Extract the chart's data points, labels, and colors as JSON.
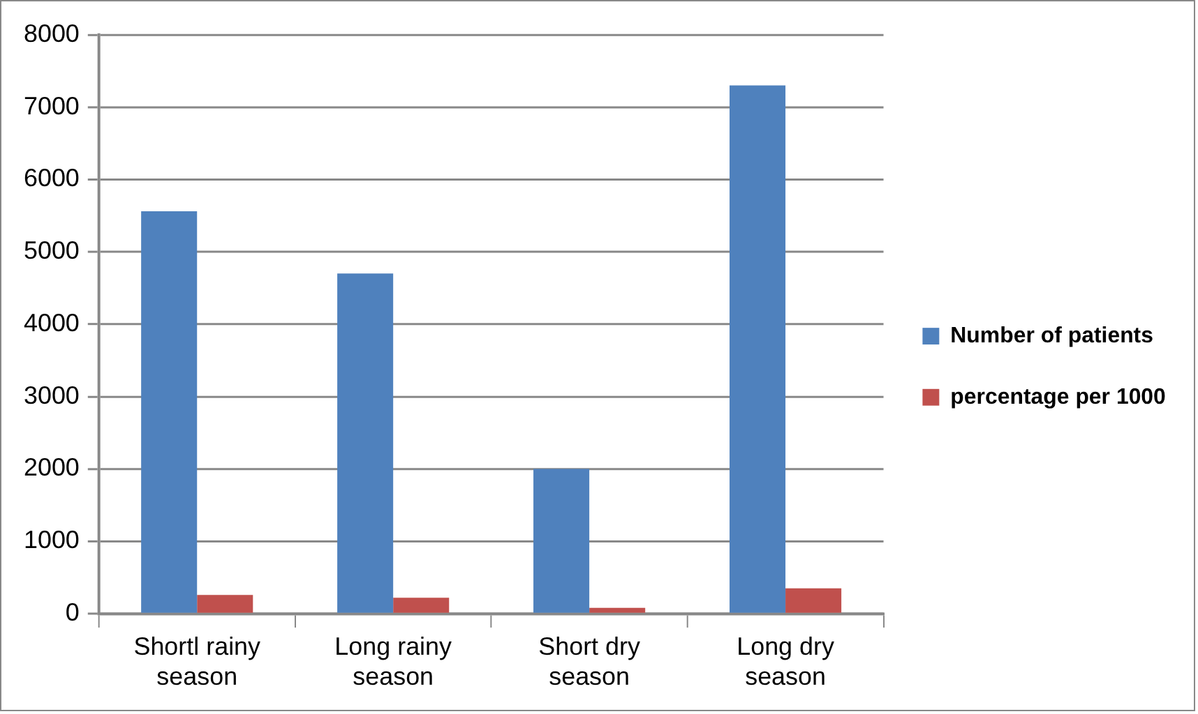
{
  "chart_data": {
    "type": "bar",
    "categories": [
      "Shortl rainy season",
      "Long rainy season",
      "Short dry season",
      "Long dry season"
    ],
    "series": [
      {
        "name": "Number of patients",
        "color": "#4f81bd",
        "values": [
          5560,
          4700,
          2000,
          7300
        ]
      },
      {
        "name": "percentage per 1000",
        "color": "#c0504d",
        "values": [
          260,
          220,
          80,
          350
        ]
      }
    ],
    "ylim": [
      0,
      8000
    ],
    "yticks": [
      0,
      1000,
      2000,
      3000,
      4000,
      5000,
      6000,
      7000,
      8000
    ],
    "grid": "y",
    "legend": "right"
  }
}
